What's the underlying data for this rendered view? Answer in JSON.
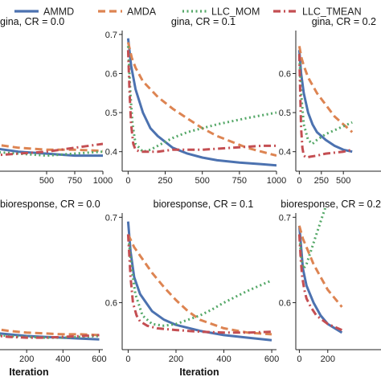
{
  "legend": {
    "placement": "top-center",
    "items": [
      {
        "label": "AMMD",
        "color": "#4C72B0",
        "dash": "solid"
      },
      {
        "label": "AMDA",
        "color": "#DD8452",
        "dash": "dashed"
      },
      {
        "label": "LLC_MOM",
        "color": "#55A868",
        "dash": "dotted"
      },
      {
        "label": "LLC_TMEAN",
        "color": "#C44E52",
        "dash": "dashdot"
      }
    ]
  },
  "chart_data": [
    {
      "type": "line",
      "title": "gina, CR = 0.0",
      "xlabel": "",
      "ylabel": "",
      "xlim": [
        0,
        1000
      ],
      "ylim": [
        0.36,
        0.72
      ],
      "xticks": [
        500,
        750,
        1000
      ],
      "xtick_labels": [
        "500",
        "750",
        "1000"
      ],
      "yticks": [],
      "ytick_labels": [],
      "series": [
        {
          "name": "AMMD",
          "x": [
            0,
            250,
            500,
            750,
            1000
          ],
          "y": [
            0.42,
            0.41,
            0.405,
            0.4,
            0.4
          ]
        },
        {
          "name": "AMDA",
          "x": [
            0,
            250,
            500,
            750,
            1000
          ],
          "y": [
            0.43,
            0.42,
            0.415,
            0.415,
            0.412
          ]
        },
        {
          "name": "LLC_MOM",
          "x": [
            0,
            250,
            500,
            750,
            1000
          ],
          "y": [
            0.41,
            0.405,
            0.4,
            0.405,
            0.41
          ]
        },
        {
          "name": "LLC_TMEAN",
          "x": [
            0,
            250,
            500,
            750,
            1000
          ],
          "y": [
            0.4,
            0.405,
            0.41,
            0.42,
            0.43
          ]
        }
      ]
    },
    {
      "type": "line",
      "title": "gina, CR = 0.1",
      "xlabel": "",
      "ylabel": "",
      "xlim": [
        -40,
        1000
      ],
      "ylim": [
        0.35,
        0.71
      ],
      "xticks": [
        0,
        250,
        500,
        750,
        1000
      ],
      "xtick_labels": [
        "0",
        "250",
        "500",
        "750",
        "1000"
      ],
      "yticks": [
        0.4,
        0.5,
        0.6,
        0.7
      ],
      "ytick_labels": [
        "0.4",
        "0.5",
        "0.6",
        "0.7"
      ],
      "series": [
        {
          "name": "AMMD",
          "x": [
            0,
            20,
            50,
            100,
            150,
            200,
            300,
            400,
            500,
            600,
            750,
            900,
            1000
          ],
          "y": [
            0.69,
            0.62,
            0.56,
            0.5,
            0.46,
            0.44,
            0.41,
            0.395,
            0.385,
            0.378,
            0.372,
            0.368,
            0.365
          ]
        },
        {
          "name": "AMDA",
          "x": [
            0,
            25,
            50,
            100,
            200,
            300,
            400,
            500,
            600,
            700,
            800,
            900,
            1000
          ],
          "y": [
            0.68,
            0.64,
            0.615,
            0.58,
            0.54,
            0.51,
            0.485,
            0.46,
            0.44,
            0.425,
            0.41,
            0.4,
            0.39
          ]
        },
        {
          "name": "LLC_MOM",
          "x": [
            0,
            15,
            30,
            50,
            100,
            150,
            200,
            250,
            300,
            400,
            500,
            600,
            700,
            800,
            900,
            1000
          ],
          "y": [
            0.67,
            0.55,
            0.47,
            0.42,
            0.4,
            0.405,
            0.415,
            0.425,
            0.435,
            0.45,
            0.46,
            0.47,
            0.478,
            0.486,
            0.493,
            0.5
          ]
        },
        {
          "name": "LLC_TMEAN",
          "x": [
            0,
            10,
            20,
            35,
            50,
            80,
            120,
            200,
            300,
            500,
            700,
            900,
            1000
          ],
          "y": [
            0.66,
            0.55,
            0.47,
            0.42,
            0.405,
            0.4,
            0.4,
            0.4,
            0.405,
            0.405,
            0.41,
            0.415,
            0.415
          ]
        }
      ]
    },
    {
      "type": "line",
      "title": "gina, CR = 0.2",
      "xlabel": "",
      "ylabel": "",
      "xlim": [
        -40,
        1000
      ],
      "ylim": [
        0.35,
        0.71
      ],
      "xticks": [
        0,
        250,
        500
      ],
      "xtick_labels": [
        "0",
        "250",
        "500"
      ],
      "yticks": [
        0.4,
        0.5,
        0.6
      ],
      "ytick_labels": [
        "0.4",
        "0.5",
        "0.6"
      ],
      "series": [
        {
          "name": "AMMD",
          "x": [
            0,
            20,
            50,
            100,
            150,
            200,
            300,
            400,
            500,
            600
          ],
          "y": [
            0.66,
            0.6,
            0.55,
            0.5,
            0.47,
            0.45,
            0.43,
            0.415,
            0.405,
            0.4
          ]
        },
        {
          "name": "AMDA",
          "x": [
            0,
            25,
            50,
            100,
            200,
            300,
            400,
            500,
            600
          ],
          "y": [
            0.67,
            0.64,
            0.62,
            0.59,
            0.55,
            0.52,
            0.49,
            0.47,
            0.45
          ]
        },
        {
          "name": "LLC_MOM",
          "x": [
            0,
            20,
            50,
            100,
            150,
            200,
            300,
            400,
            500,
            600
          ],
          "y": [
            0.65,
            0.55,
            0.47,
            0.43,
            0.42,
            0.43,
            0.445,
            0.455,
            0.465,
            0.475
          ]
        },
        {
          "name": "LLC_TMEAN",
          "x": [
            0,
            10,
            20,
            35,
            50,
            80,
            120,
            200,
            300,
            500,
            600
          ],
          "y": [
            0.65,
            0.55,
            0.46,
            0.41,
            0.39,
            0.385,
            0.387,
            0.39,
            0.395,
            0.4,
            0.405
          ]
        }
      ]
    },
    {
      "type": "line",
      "title": "bioresponse, CR = 0.0",
      "xlabel": "Iteration",
      "ylabel": "",
      "xlim": [
        0,
        620
      ],
      "ylim": [
        0.54,
        0.7
      ],
      "xticks": [
        200,
        400,
        600
      ],
      "xtick_labels": [
        "200",
        "400",
        "600"
      ],
      "yticks": [],
      "ytick_labels": [],
      "series": [
        {
          "name": "AMMD",
          "x": [
            0,
            100,
            200,
            300,
            400,
            500,
            600
          ],
          "y": [
            0.56,
            0.558,
            0.556,
            0.555,
            0.554,
            0.553,
            0.552
          ]
        },
        {
          "name": "AMDA",
          "x": [
            0,
            100,
            200,
            300,
            400,
            500,
            600
          ],
          "y": [
            0.565,
            0.562,
            0.56,
            0.559,
            0.558,
            0.558,
            0.557
          ]
        },
        {
          "name": "LLC_MOM",
          "x": [
            0,
            100,
            200,
            300,
            400,
            500,
            600
          ],
          "y": [
            0.558,
            0.556,
            0.555,
            0.554,
            0.554,
            0.555,
            0.556
          ]
        },
        {
          "name": "LLC_TMEAN",
          "x": [
            0,
            100,
            200,
            300,
            400,
            500,
            600
          ],
          "y": [
            0.557,
            0.555,
            0.554,
            0.554,
            0.555,
            0.556,
            0.557
          ]
        }
      ]
    },
    {
      "type": "line",
      "title": "bioresponse, CR = 0.1",
      "xlabel": "Iteration",
      "ylabel": "",
      "xlim": [
        -25,
        620
      ],
      "ylim": [
        0.545,
        0.705
      ],
      "xticks": [
        0,
        200,
        400,
        600
      ],
      "xtick_labels": [
        "0",
        "200",
        "400",
        "600"
      ],
      "yticks": [
        0.6,
        0.7
      ],
      "ytick_labels": [
        "0.6",
        "0.7"
      ],
      "series": [
        {
          "name": "AMMD",
          "x": [
            0,
            10,
            25,
            50,
            100,
            150,
            200,
            300,
            400,
            500,
            600
          ],
          "y": [
            0.695,
            0.66,
            0.63,
            0.61,
            0.59,
            0.58,
            0.574,
            0.567,
            0.562,
            0.559,
            0.556
          ]
        },
        {
          "name": "AMDA",
          "x": [
            0,
            25,
            50,
            100,
            150,
            200,
            250,
            300,
            400,
            500,
            600
          ],
          "y": [
            0.68,
            0.665,
            0.655,
            0.635,
            0.618,
            0.603,
            0.59,
            0.58,
            0.57,
            0.565,
            0.563
          ]
        },
        {
          "name": "LLC_MOM",
          "x": [
            0,
            15,
            30,
            60,
            100,
            150,
            200,
            250,
            300,
            350,
            400,
            450,
            500,
            550,
            600
          ],
          "y": [
            0.68,
            0.64,
            0.61,
            0.585,
            0.575,
            0.573,
            0.575,
            0.58,
            0.585,
            0.592,
            0.6,
            0.607,
            0.614,
            0.62,
            0.626
          ]
        },
        {
          "name": "LLC_TMEAN",
          "x": [
            0,
            10,
            20,
            35,
            50,
            80,
            120,
            200,
            300,
            400,
            500,
            600
          ],
          "y": [
            0.68,
            0.63,
            0.6,
            0.585,
            0.578,
            0.573,
            0.57,
            0.568,
            0.566,
            0.565,
            0.565,
            0.566
          ]
        }
      ]
    },
    {
      "type": "line",
      "title": "bioresponse, CR = 0.2",
      "xlabel": "",
      "ylabel": "",
      "xlim": [
        -25,
        620
      ],
      "ylim": [
        0.545,
        0.705
      ],
      "xticks": [
        0,
        200
      ],
      "xtick_labels": [
        "0",
        "200"
      ],
      "yticks": [
        0.6,
        0.7
      ],
      "ytick_labels": [
        "0.6",
        "0.7"
      ],
      "series": [
        {
          "name": "AMMD",
          "x": [
            0,
            10,
            25,
            50,
            100,
            150,
            200,
            300
          ],
          "y": [
            0.69,
            0.67,
            0.64,
            0.62,
            0.6,
            0.585,
            0.575,
            0.565
          ]
        },
        {
          "name": "AMDA",
          "x": [
            0,
            25,
            50,
            100,
            150,
            200,
            300
          ],
          "y": [
            0.69,
            0.675,
            0.665,
            0.645,
            0.63,
            0.615,
            0.595
          ]
        },
        {
          "name": "LLC_MOM",
          "x": [
            0,
            15,
            30,
            50,
            80,
            120,
            160,
            200
          ],
          "y": [
            0.68,
            0.65,
            0.64,
            0.645,
            0.66,
            0.68,
            0.7,
            0.72
          ]
        },
        {
          "name": "LLC_TMEAN",
          "x": [
            0,
            10,
            20,
            35,
            50,
            80,
            120,
            200,
            300
          ],
          "y": [
            0.68,
            0.65,
            0.63,
            0.615,
            0.605,
            0.595,
            0.585,
            0.575,
            0.568
          ]
        }
      ]
    }
  ]
}
